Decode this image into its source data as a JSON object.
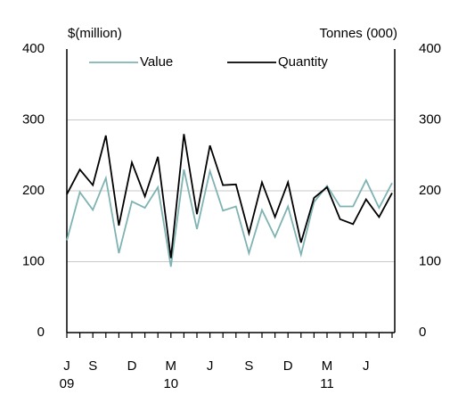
{
  "chart_data": {
    "type": "line",
    "y_label": "$(million)",
    "y2_label": "Tonnes (000)",
    "categories": [
      "J",
      null,
      "S",
      null,
      null,
      "D",
      null,
      null,
      "M",
      null,
      null,
      "J",
      null,
      null,
      "S",
      null,
      null,
      "D",
      null,
      null,
      "M",
      null,
      null,
      "J",
      null,
      null
    ],
    "category_years": [
      "09",
      null,
      null,
      null,
      null,
      null,
      null,
      null,
      "10",
      null,
      null,
      null,
      null,
      null,
      null,
      null,
      null,
      null,
      null,
      null,
      "11",
      null,
      null,
      null,
      null,
      null
    ],
    "series": [
      {
        "name": "Value",
        "color": "#7fb3b3",
        "axis": "y",
        "values": [
          130,
          198,
          173,
          218,
          112,
          185,
          176,
          205,
          93,
          230,
          146,
          228,
          172,
          178,
          112,
          173,
          135,
          178,
          110,
          184,
          207,
          178,
          178,
          215,
          176,
          211
        ]
      },
      {
        "name": "Quantity",
        "color": "#000000",
        "axis": "y2",
        "values": [
          195,
          230,
          208,
          278,
          151,
          240,
          192,
          248,
          105,
          280,
          167,
          264,
          208,
          209,
          140,
          212,
          163,
          212,
          127,
          190,
          205,
          160,
          153,
          188,
          163,
          197
        ]
      }
    ],
    "ylim": [
      0,
      400
    ],
    "yticks": [
      0,
      100,
      200,
      300,
      400
    ],
    "y2lim": [
      0,
      400
    ],
    "y2ticks": [
      0,
      100,
      200,
      300,
      400
    ],
    "grid": true
  }
}
